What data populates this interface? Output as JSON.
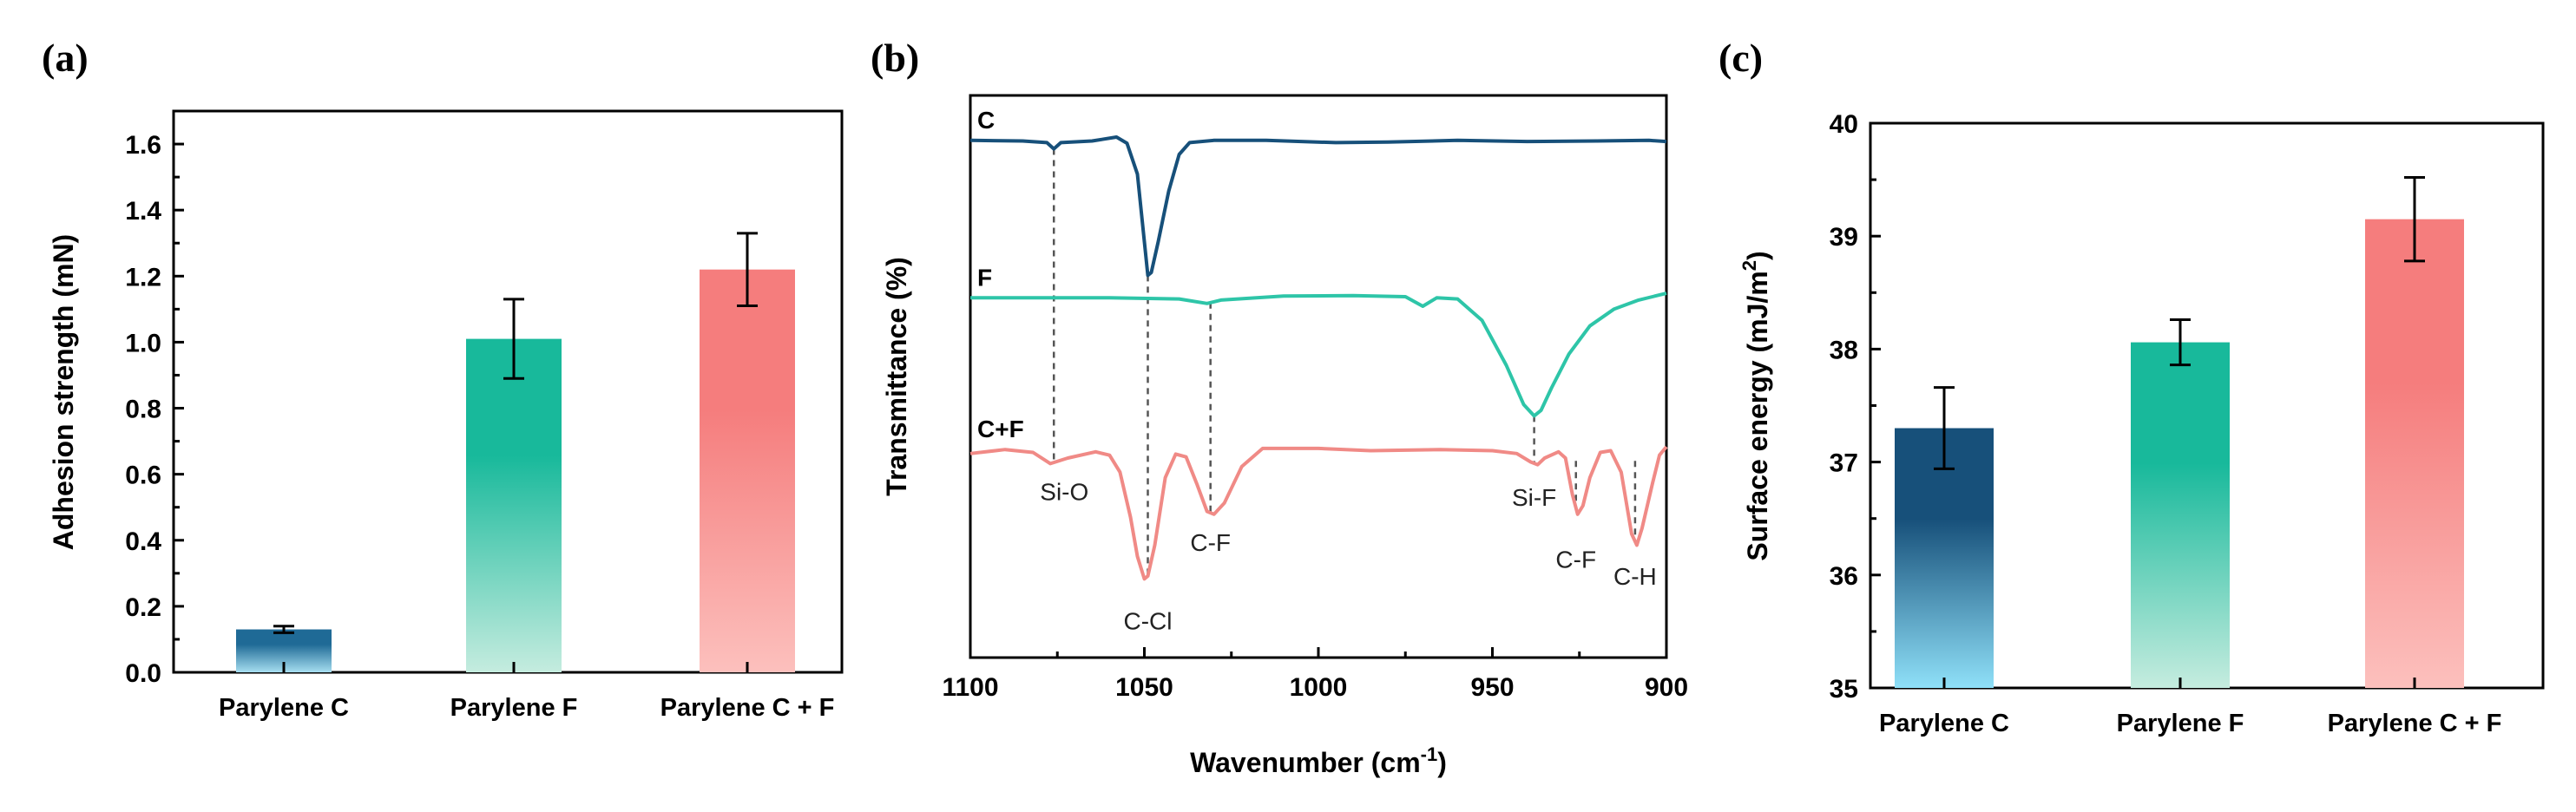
{
  "chart_data": [
    {
      "id": "a",
      "type": "bar",
      "panel_label": "(a)",
      "title": "",
      "xlabel": "",
      "ylabel": "Adhesion strength (mN)",
      "ylim": [
        0,
        1.7
      ],
      "yticks": [
        0.0,
        0.2,
        0.4,
        0.6,
        0.8,
        1.0,
        1.2,
        1.4,
        1.6
      ],
      "ytick_labels": [
        "0.0",
        "0.2",
        "0.4",
        "0.6",
        "0.8",
        "1.0",
        "1.2",
        "1.4",
        "1.6"
      ],
      "categories": [
        "Parylene C",
        "Parylene F",
        "Parylene C + F"
      ],
      "values": [
        0.13,
        1.01,
        1.22
      ],
      "errors": [
        0.01,
        0.12,
        0.11
      ],
      "colors": [
        {
          "top": "#1f6a96",
          "bottom": "#a6def0"
        },
        {
          "top": "#18b99b",
          "bottom": "#c5ecdf"
        },
        {
          "top": "#f57d7d",
          "bottom": "#fcc0bd"
        }
      ]
    },
    {
      "id": "b",
      "type": "line",
      "panel_label": "(b)",
      "title": "",
      "xlabel": "Wavenumber (cm",
      "xlabel_sup": "-1",
      "xlabel_end": ")",
      "ylabel": "Transmittance (%)",
      "xlim": [
        1100,
        900
      ],
      "xticks": [
        1100,
        1050,
        1000,
        950,
        900
      ],
      "xtick_labels": [
        "1100",
        "1050",
        "1000",
        "950",
        "900"
      ],
      "ylim": [
        0,
        100
      ],
      "series": [
        {
          "name": "C",
          "color": "#17507a",
          "baseline": 92,
          "points": [
            [
              1100,
              92
            ],
            [
              1085,
              91.9
            ],
            [
              1078,
              91.6
            ],
            [
              1076,
              90.5
            ],
            [
              1074,
              91.6
            ],
            [
              1065,
              91.9
            ],
            [
              1058,
              92.6
            ],
            [
              1055,
              91.5
            ],
            [
              1052,
              86
            ],
            [
              1050,
              74
            ],
            [
              1049,
              68
            ],
            [
              1048,
              68.5
            ],
            [
              1046,
              74
            ],
            [
              1043,
              83
            ],
            [
              1040,
              89.5
            ],
            [
              1037,
              91.6
            ],
            [
              1030,
              92
            ],
            [
              1015,
              92
            ],
            [
              995,
              91.6
            ],
            [
              980,
              91.7
            ],
            [
              960,
              92
            ],
            [
              940,
              91.8
            ],
            [
              920,
              91.9
            ],
            [
              905,
              92
            ],
            [
              900,
              91.8
            ]
          ]
        },
        {
          "name": "F",
          "color": "#2ec5a8",
          "baseline": 64,
          "points": [
            [
              1100,
              64
            ],
            [
              1080,
              64
            ],
            [
              1060,
              64
            ],
            [
              1040,
              63.8
            ],
            [
              1032,
              63
            ],
            [
              1028,
              63.6
            ],
            [
              1010,
              64.3
            ],
            [
              990,
              64.4
            ],
            [
              975,
              64.2
            ],
            [
              970,
              62.5
            ],
            [
              966,
              64
            ],
            [
              960,
              63.8
            ],
            [
              953,
              60
            ],
            [
              946,
              52
            ],
            [
              941,
              45
            ],
            [
              938,
              43
            ],
            [
              936,
              44
            ],
            [
              933,
              48
            ],
            [
              928,
              54
            ],
            [
              922,
              59
            ],
            [
              915,
              62
            ],
            [
              908,
              63.6
            ],
            [
              900,
              64.8
            ]
          ]
        },
        {
          "name": "C+F",
          "color": "#f08a86",
          "baseline": 37,
          "points": [
            [
              1100,
              36.3
            ],
            [
              1090,
              37
            ],
            [
              1082,
              36.5
            ],
            [
              1077,
              34.5
            ],
            [
              1072,
              35.5
            ],
            [
              1064,
              36.6
            ],
            [
              1060,
              36
            ],
            [
              1057,
              33
            ],
            [
              1054,
              25
            ],
            [
              1052,
              18
            ],
            [
              1050,
              14
            ],
            [
              1049,
              14.5
            ],
            [
              1047,
              20
            ],
            [
              1044,
              32
            ],
            [
              1041,
              36.2
            ],
            [
              1038,
              35.7
            ],
            [
              1035,
              31
            ],
            [
              1032,
              26
            ],
            [
              1030,
              25.5
            ],
            [
              1027,
              27.5
            ],
            [
              1022,
              34
            ],
            [
              1016,
              37.2
            ],
            [
              1000,
              37.2
            ],
            [
              985,
              36.8
            ],
            [
              965,
              37
            ],
            [
              950,
              36.8
            ],
            [
              943,
              36.3
            ],
            [
              939,
              34.8
            ],
            [
              937,
              34.3
            ],
            [
              935,
              35.5
            ],
            [
              931,
              36.6
            ],
            [
              929,
              35.5
            ],
            [
              927,
              29
            ],
            [
              925.5,
              25.5
            ],
            [
              924,
              27
            ],
            [
              922,
              32
            ],
            [
              919,
              36.5
            ],
            [
              916,
              36.8
            ],
            [
              913,
              33
            ],
            [
              910,
              22
            ],
            [
              908.5,
              20
            ],
            [
              907,
              23
            ],
            [
              904,
              31
            ],
            [
              902,
              36
            ],
            [
              900,
              37.5
            ]
          ]
        }
      ],
      "guides": [
        {
          "label": "Si-O",
          "x": 1076,
          "from_series": "C",
          "to_series": "C+F"
        },
        {
          "label": "C-Cl",
          "x": 1049,
          "from_series": "C",
          "to_series": "C+F"
        },
        {
          "label": "C-F",
          "x": 1031,
          "from_series": "F",
          "to_series": "C+F"
        },
        {
          "label": "Si-F",
          "x": 938,
          "from_series": "F",
          "to_series": "C+F"
        },
        {
          "label": "C-F",
          "x": 926,
          "from_series": "C+F",
          "to_series": "C+F"
        },
        {
          "label": "C-H",
          "x": 909,
          "from_series": "C+F",
          "to_series": "C+F"
        }
      ],
      "peak_labels": [
        {
          "label": "Si-O",
          "x": 1073,
          "y": 28
        },
        {
          "label": "C-Cl",
          "x": 1049,
          "y": 5
        },
        {
          "label": "C-F",
          "x": 1031,
          "y": 19
        },
        {
          "label": "Si-F",
          "x": 938,
          "y": 27
        },
        {
          "label": "C-F",
          "x": 926,
          "y": 16
        },
        {
          "label": "C-H",
          "x": 909,
          "y": 13
        }
      ]
    },
    {
      "id": "c",
      "type": "bar",
      "panel_label": "(c)",
      "title": "",
      "xlabel": "",
      "ylabel": "Surface energy (mJ/m",
      "ylabel_sup": "2",
      "ylabel_end": ")",
      "ylim": [
        35,
        40
      ],
      "yticks": [
        35,
        36,
        37,
        38,
        39,
        40
      ],
      "ytick_labels": [
        "35",
        "36",
        "37",
        "38",
        "39",
        "40"
      ],
      "categories": [
        "Parylene C",
        "Parylene F",
        "Parylene C + F"
      ],
      "values": [
        37.3,
        38.06,
        39.15
      ],
      "errors": [
        0.36,
        0.2,
        0.37
      ],
      "colors": [
        {
          "top": "#17507a",
          "bottom": "#8fe0f8"
        },
        {
          "top": "#18b99b",
          "bottom": "#c5ecdf"
        },
        {
          "top": "#f57d7d",
          "bottom": "#fcc0bd"
        }
      ]
    }
  ]
}
